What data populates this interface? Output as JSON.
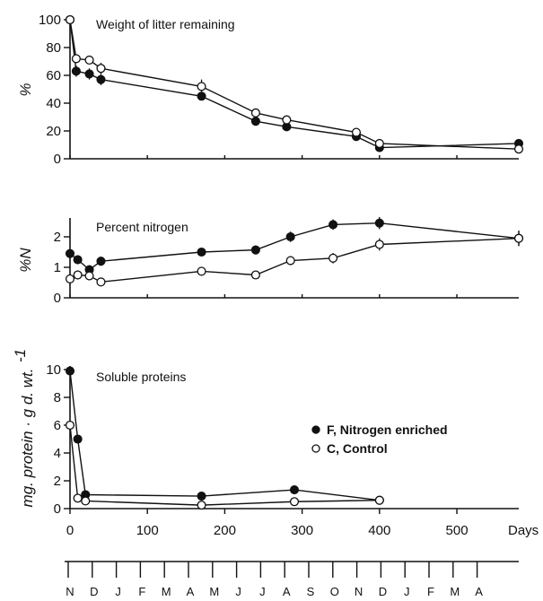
{
  "chart_data": [
    {
      "type": "line",
      "title": "Weight of litter remaining",
      "ylabel": "%",
      "xlabel": "",
      "ylim": [
        0,
        100
      ],
      "yticks": [
        0,
        20,
        40,
        60,
        80,
        100
      ],
      "xlim": [
        0,
        580
      ],
      "series": [
        {
          "key": "F",
          "marker": "filled",
          "x": [
            0,
            8,
            25,
            40,
            170,
            240,
            280,
            370,
            400,
            580
          ],
          "y": [
            100,
            63,
            61,
            57,
            45,
            27,
            23,
            16,
            8,
            11
          ],
          "err": [
            0,
            4,
            4,
            4,
            0,
            0,
            0,
            0,
            0,
            0
          ]
        },
        {
          "key": "C",
          "marker": "open",
          "x": [
            0,
            8,
            25,
            40,
            170,
            240,
            280,
            370,
            400,
            580
          ],
          "y": [
            100,
            72,
            71,
            65,
            52,
            33,
            28,
            19,
            11,
            7
          ],
          "err": [
            0,
            0,
            0,
            4,
            5,
            0,
            0,
            3,
            0,
            0
          ]
        }
      ]
    },
    {
      "type": "line",
      "title": "Percent nitrogen",
      "ylabel": "%N",
      "xlabel": "",
      "ylim": [
        0,
        2.5
      ],
      "yticks": [
        0,
        1,
        2
      ],
      "xlim": [
        0,
        580
      ],
      "series": [
        {
          "key": "F",
          "marker": "filled",
          "x": [
            0,
            10,
            25,
            40,
            170,
            240,
            285,
            340,
            400,
            580
          ],
          "y": [
            1.45,
            1.25,
            0.92,
            1.2,
            1.5,
            1.57,
            2.0,
            2.4,
            2.45,
            1.95
          ],
          "err": [
            0.05,
            0.15,
            0.15,
            0.15,
            0.12,
            0.15,
            0.17,
            0.17,
            0.2,
            0.25
          ]
        },
        {
          "key": "C",
          "marker": "open",
          "x": [
            0,
            10,
            25,
            40,
            170,
            240,
            285,
            340,
            400,
            580
          ],
          "y": [
            0.62,
            0.75,
            0.72,
            0.52,
            0.87,
            0.75,
            1.22,
            1.3,
            1.75,
            1.95
          ],
          "err": [
            0.12,
            0.15,
            0.12,
            0.12,
            0.05,
            0.05,
            0.15,
            0.17,
            0.2,
            0.25
          ]
        }
      ]
    },
    {
      "type": "line",
      "title": "Soluble proteins",
      "ylabel": "mg. protein · g d. wt.",
      "ylabel_superscript": "-1",
      "xlabel": "Days",
      "ylim": [
        0,
        10
      ],
      "yticks": [
        0,
        2,
        4,
        6,
        8,
        10
      ],
      "xlim": [
        0,
        580
      ],
      "xticks": [
        0,
        100,
        200,
        300,
        400,
        500
      ],
      "series": [
        {
          "key": "F",
          "name": "F, Nitrogen enriched",
          "marker": "filled",
          "x": [
            0,
            10,
            20,
            170,
            290,
            400
          ],
          "y": [
            9.9,
            5.0,
            1.0,
            0.9,
            1.35,
            0.6
          ],
          "err": [
            0,
            0,
            0,
            0,
            0,
            0
          ]
        },
        {
          "key": "C",
          "name": "C, Control",
          "marker": "open",
          "x": [
            0,
            10,
            20,
            170,
            290,
            400
          ],
          "y": [
            6.0,
            0.75,
            0.55,
            0.25,
            0.5,
            0.6
          ],
          "err": [
            0,
            0,
            0,
            0,
            0,
            0
          ]
        }
      ]
    }
  ],
  "x_axis": {
    "tick_labels": [
      "0",
      "100",
      "200",
      "300",
      "400",
      "500"
    ],
    "unit_label": "Days",
    "months": [
      "N",
      "D",
      "J",
      "F",
      "M",
      "A",
      "M",
      "J",
      "J",
      "A",
      "S",
      "O",
      "N",
      "D",
      "J",
      "F",
      "M",
      "A"
    ]
  },
  "legend": {
    "placement": "right, bottom panel",
    "items": [
      {
        "symbol": "filled",
        "label": "F, Nitrogen enriched"
      },
      {
        "symbol": "open",
        "label": "C, Control"
      }
    ]
  }
}
